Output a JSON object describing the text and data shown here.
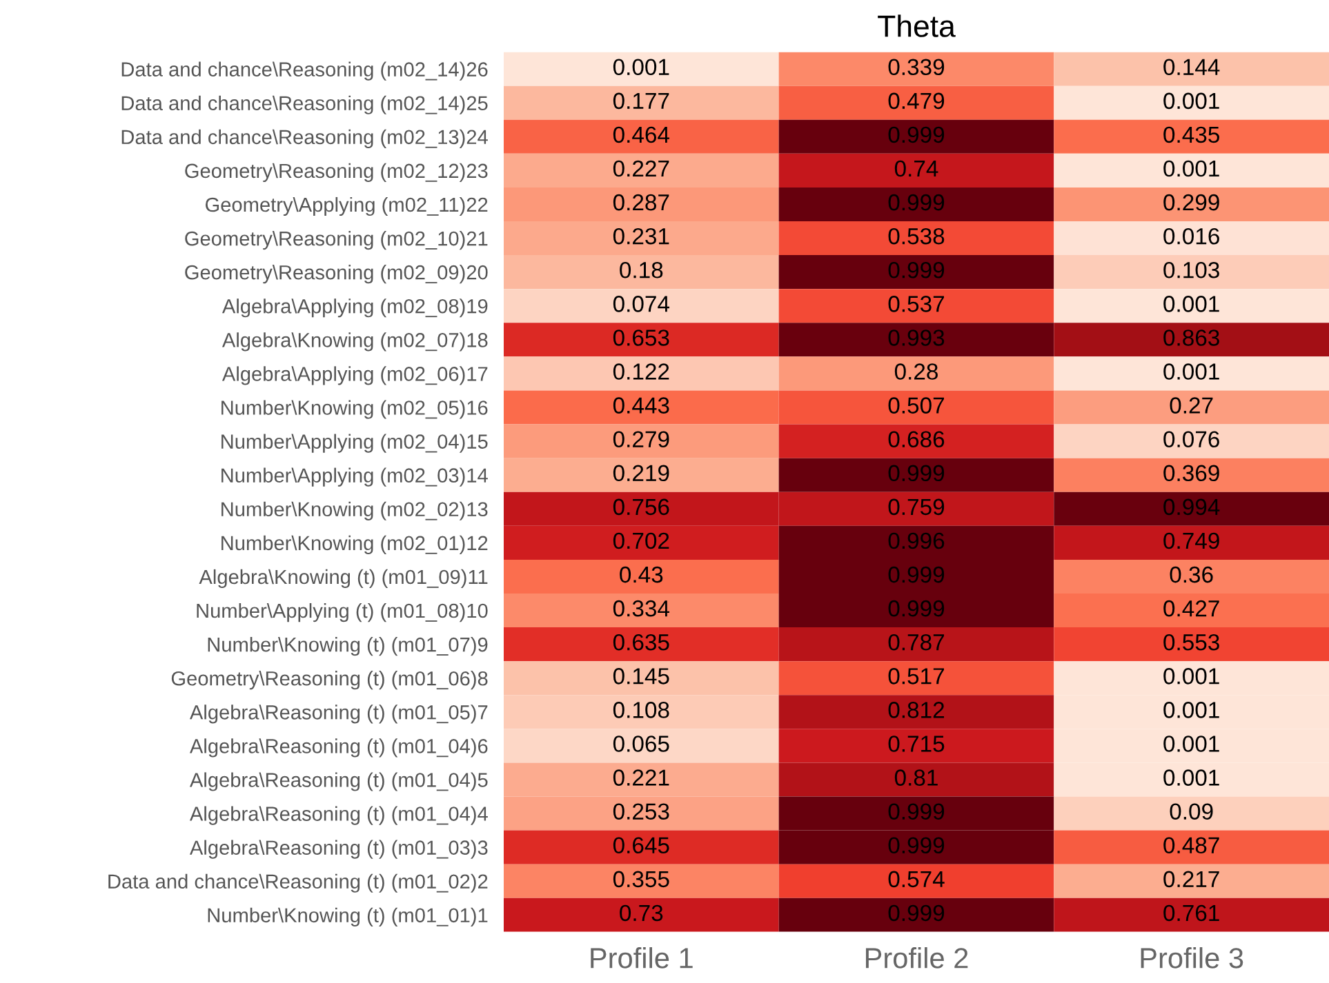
{
  "chart_data": {
    "type": "heatmap",
    "title": "Theta",
    "categories": [
      "Profile 1",
      "Profile 2",
      "Profile 3"
    ],
    "y_categories": [
      "Data and chance\\Reasoning (m02_14)26",
      "Data and chance\\Reasoning (m02_14)25",
      "Data and chance\\Reasoning (m02_13)24",
      "Geometry\\Reasoning (m02_12)23",
      "Geometry\\Applying (m02_11)22",
      "Geometry\\Reasoning (m02_10)21",
      "Geometry\\Reasoning (m02_09)20",
      "Algebra\\Applying (m02_08)19",
      "Algebra\\Knowing (m02_07)18",
      "Algebra\\Applying (m02_06)17",
      "Number\\Knowing (m02_05)16",
      "Number\\Applying (m02_04)15",
      "Number\\Applying (m02_03)14",
      "Number\\Knowing (m02_02)13",
      "Number\\Knowing (m02_01)12",
      "Algebra\\Knowing (t) (m01_09)11",
      "Number\\Applying (t) (m01_08)10",
      "Number\\Knowing (t) (m01_07)9",
      "Geometry\\Reasoning (t) (m01_06)8",
      "Algebra\\Reasoning (t) (m01_05)7",
      "Algebra\\Reasoning (t) (m01_04)6",
      "Algebra\\Reasoning (t) (m01_04)5",
      "Algebra\\Reasoning (t) (m01_04)4",
      "Algebra\\Reasoning (t) (m01_03)3",
      "Data and chance\\Reasoning (t) (m01_02)2",
      "Number\\Knowing (t) (m01_01)1"
    ],
    "cells": [
      [
        0.001,
        0.339,
        0.144
      ],
      [
        0.177,
        0.479,
        0.001
      ],
      [
        0.464,
        0.999,
        0.435
      ],
      [
        0.227,
        0.74,
        0.001
      ],
      [
        0.287,
        0.999,
        0.299
      ],
      [
        0.231,
        0.538,
        0.016
      ],
      [
        0.18,
        0.999,
        0.103
      ],
      [
        0.074,
        0.537,
        0.001
      ],
      [
        0.653,
        0.993,
        0.863
      ],
      [
        0.122,
        0.28,
        0.001
      ],
      [
        0.443,
        0.507,
        0.27
      ],
      [
        0.279,
        0.686,
        0.076
      ],
      [
        0.219,
        0.999,
        0.369
      ],
      [
        0.756,
        0.759,
        0.994
      ],
      [
        0.702,
        0.996,
        0.749
      ],
      [
        0.43,
        0.999,
        0.36
      ],
      [
        0.334,
        0.999,
        0.427
      ],
      [
        0.635,
        0.787,
        0.553
      ],
      [
        0.145,
        0.517,
        0.001
      ],
      [
        0.108,
        0.812,
        0.001
      ],
      [
        0.065,
        0.715,
        0.001
      ],
      [
        0.221,
        0.81,
        0.001
      ],
      [
        0.253,
        0.999,
        0.09
      ],
      [
        0.645,
        0.999,
        0.487
      ],
      [
        0.355,
        0.574,
        0.217
      ],
      [
        0.73,
        0.999,
        0.761
      ]
    ],
    "data_labels": true,
    "grid": false
  }
}
